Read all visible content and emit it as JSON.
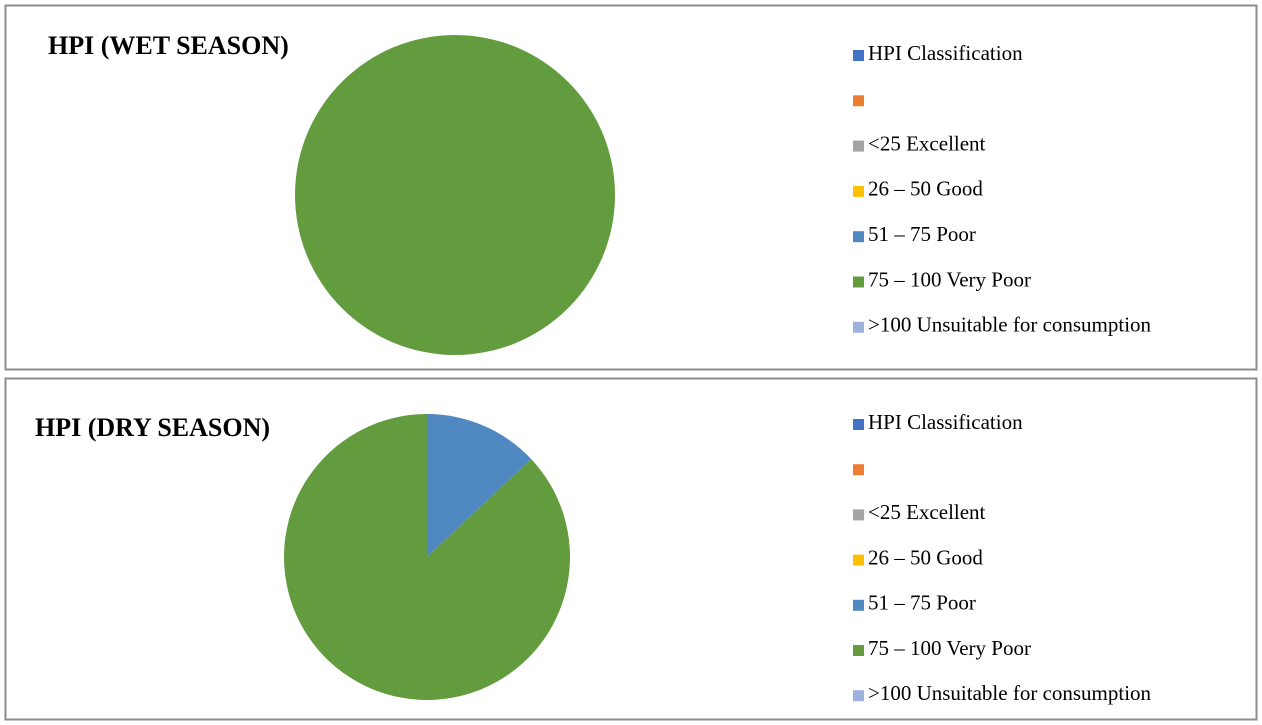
{
  "chart_data": [
    {
      "type": "pie",
      "title": "HPI (WET SEASON)",
      "categories": [
        "HPI Classification",
        null,
        "<25 Excellent",
        "26 – 50 Good",
        "51 – 75 Poor",
        "75 – 100 Very Poor",
        ">100 Unsuitable for consumption"
      ],
      "values": [
        0,
        0,
        0,
        0,
        0,
        100,
        0
      ],
      "colors": [
        "#4472c4",
        "#ed7d31",
        "#a5a5a5",
        "#ffc000",
        "#5089c1",
        "#639c3e",
        "#9eb0dc"
      ],
      "legend": "right"
    },
    {
      "type": "pie",
      "title": "HPI (DRY SEASON)",
      "categories": [
        "HPI Classification",
        null,
        "<25 Excellent",
        "26 – 50 Good",
        "51 – 75 Poor",
        "75 – 100 Very Poor",
        ">100 Unsuitable for consumption"
      ],
      "values": [
        0,
        0,
        0,
        0,
        13,
        87,
        0
      ],
      "colors": [
        "#4472c4",
        "#ed7d31",
        "#a5a5a5",
        "#ffc000",
        "#5089c1",
        "#639c3e",
        "#9eb0dc"
      ],
      "legend": "right"
    }
  ]
}
